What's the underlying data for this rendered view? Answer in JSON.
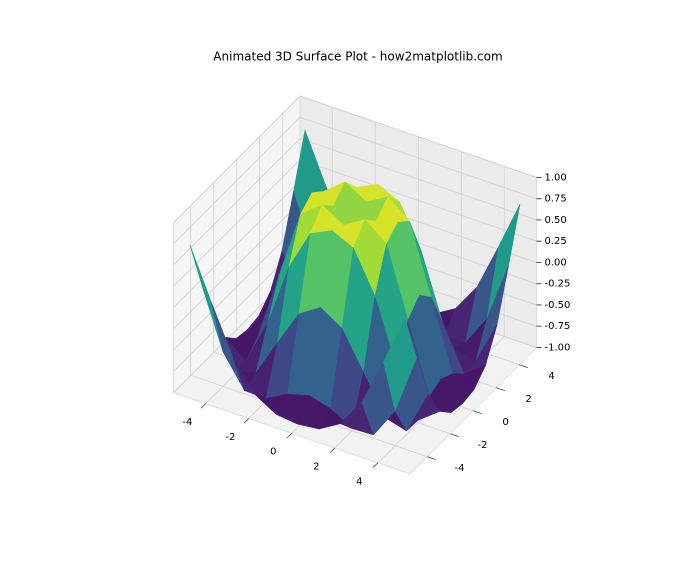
{
  "chart_data": {
    "type": "surface",
    "title": "Animated 3D Surface Plot - how2matplotlib.com",
    "x": [
      -5,
      -4,
      -3,
      -2,
      -1,
      0,
      1,
      2,
      3,
      4,
      5
    ],
    "y": [
      -5,
      -4,
      -3,
      -2,
      -1,
      0,
      1,
      2,
      3,
      4,
      5
    ],
    "z": [
      [
        0.71,
        0.12,
        -0.44,
        -0.78,
        -0.93,
        -0.96,
        -0.93,
        -0.78,
        -0.44,
        0.12,
        0.71
      ],
      [
        0.12,
        -0.59,
        -0.96,
        -0.97,
        -0.83,
        -0.76,
        -0.83,
        -0.97,
        -0.96,
        -0.59,
        0.12
      ],
      [
        -0.44,
        -0.96,
        -0.89,
        -0.45,
        -0.02,
        0.14,
        -0.02,
        -0.45,
        -0.89,
        -0.96,
        -0.44
      ],
      [
        -0.78,
        -0.97,
        -0.45,
        0.31,
        0.79,
        0.91,
        0.79,
        0.31,
        -0.45,
        -0.97,
        -0.78
      ],
      [
        -0.93,
        -0.83,
        -0.02,
        0.79,
        0.99,
        0.84,
        0.99,
        0.79,
        -0.02,
        -0.83,
        -0.93
      ],
      [
        -0.96,
        -0.76,
        0.14,
        0.91,
        0.84,
        0,
        0.84,
        0.91,
        0.14,
        -0.76,
        -0.96
      ],
      [
        -0.93,
        -0.83,
        -0.02,
        0.79,
        0.99,
        0.84,
        0.99,
        0.79,
        -0.02,
        -0.83,
        -0.93
      ],
      [
        -0.78,
        -0.97,
        -0.45,
        0.31,
        0.79,
        0.91,
        0.79,
        0.31,
        -0.45,
        -0.97,
        -0.78
      ],
      [
        -0.44,
        -0.96,
        -0.89,
        -0.45,
        -0.02,
        0.14,
        -0.02,
        -0.45,
        -0.89,
        -0.96,
        -0.44
      ],
      [
        0.12,
        -0.59,
        -0.96,
        -0.97,
        -0.83,
        -0.76,
        -0.83,
        -0.97,
        -0.96,
        -0.59,
        0.12
      ],
      [
        0.71,
        0.12,
        -0.44,
        -0.78,
        -0.93,
        -0.96,
        -0.93,
        -0.78,
        -0.44,
        0.12,
        0.71
      ]
    ],
    "colormap": "viridis",
    "xlim": [
      -5.5,
      5.5
    ],
    "ylim": [
      -5.5,
      5.5
    ],
    "zlim": [
      -1,
      1
    ],
    "xticks": [
      -4,
      -2,
      0,
      2,
      4
    ],
    "yticks": [
      -4,
      -2,
      0,
      2,
      4
    ],
    "zticks": [
      {
        "value": -1,
        "label": "-1.00"
      },
      {
        "value": -0.75,
        "label": "-0.75"
      },
      {
        "value": -0.5,
        "label": "-0.50"
      },
      {
        "value": -0.25,
        "label": "-0.25"
      },
      {
        "value": 0,
        "label": "0.00"
      },
      {
        "value": 0.25,
        "label": "0.25"
      },
      {
        "value": 0.5,
        "label": "0.50"
      },
      {
        "value": 0.75,
        "label": "0.75"
      },
      {
        "value": 1,
        "label": "1.00"
      }
    ],
    "grid": true
  }
}
